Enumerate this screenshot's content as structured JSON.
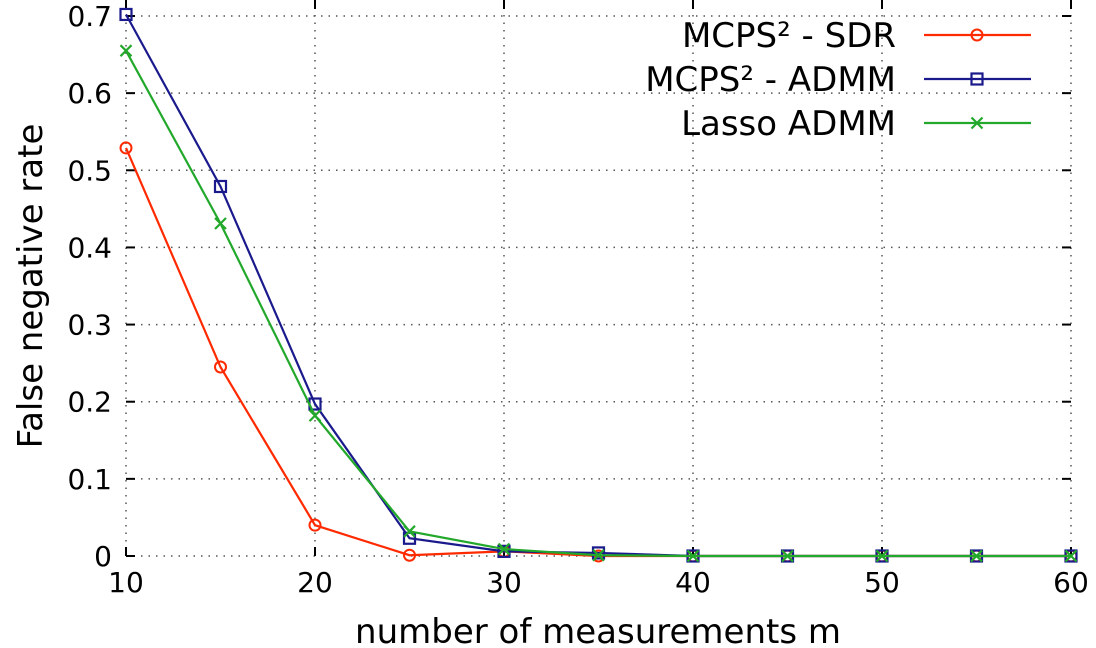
{
  "chart_data": {
    "type": "line",
    "xlabel": "number of measurements m",
    "ylabel": "False negative rate",
    "xlim": [
      10,
      60
    ],
    "ylim": [
      0,
      0.7
    ],
    "xticks": [
      10,
      20,
      30,
      40,
      50,
      60
    ],
    "yticks": [
      0,
      0.1,
      0.2,
      0.3,
      0.4,
      0.5,
      0.6,
      0.7
    ],
    "grid": true,
    "legend_position": "top-right",
    "x": [
      10,
      15,
      20,
      25,
      30,
      35,
      40,
      45,
      50,
      55,
      60
    ],
    "series": [
      {
        "name": "MCPS² - SDR",
        "color": "#ff2a00",
        "marker": "circle",
        "values": [
          0.529,
          0.245,
          0.04,
          0.001,
          0.006,
          0.0,
          0.0,
          0.0,
          0.0,
          0.0,
          0.0
        ]
      },
      {
        "name": "MCPS² - ADMM",
        "color": "#1a1a8c",
        "marker": "square",
        "values": [
          0.702,
          0.479,
          0.197,
          0.023,
          0.006,
          0.004,
          0.0,
          0.0,
          0.0,
          0.0,
          0.0
        ]
      },
      {
        "name": "Lasso ADMM",
        "color": "#22a82a",
        "marker": "x",
        "values": [
          0.655,
          0.431,
          0.182,
          0.032,
          0.009,
          0.001,
          0.0,
          0.0,
          0.0,
          0.0,
          0.0
        ]
      }
    ]
  }
}
